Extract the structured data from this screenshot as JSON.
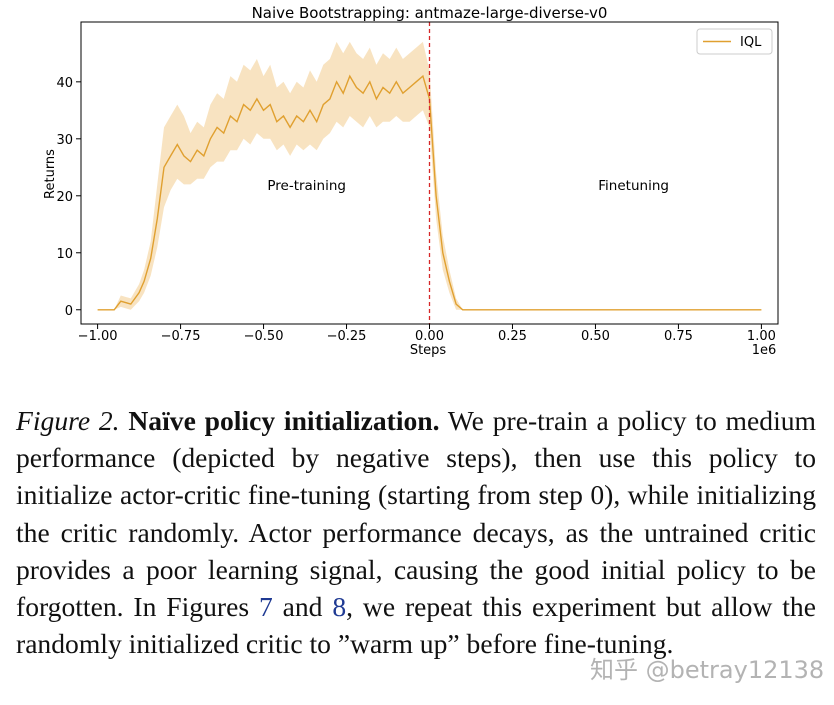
{
  "chart_data": {
    "type": "line",
    "title": "Naive Bootstrapping: antmaze-large-diverse-v0",
    "xlabel": "Steps",
    "ylabel": "Returns",
    "x_scale_label": "1e6",
    "xlim": [
      -1.05,
      1.05
    ],
    "ylim": [
      -2.5,
      50.5
    ],
    "xticks": [
      -1.0,
      -0.75,
      -0.5,
      -0.25,
      0.0,
      0.25,
      0.5,
      0.75,
      1.0
    ],
    "xtick_labels": [
      "−1.00",
      "−0.75",
      "−0.50",
      "−0.25",
      "0.00",
      "0.25",
      "0.50",
      "0.75",
      "1.00"
    ],
    "yticks": [
      0,
      10,
      20,
      30,
      40
    ],
    "ytick_labels": [
      "0",
      "10",
      "20",
      "30",
      "40"
    ],
    "vline": {
      "x": 0.0,
      "color": "#d62728",
      "style": "dashed"
    },
    "annotations": [
      {
        "text": "Pre-training",
        "x": -0.37,
        "y": 21
      },
      {
        "text": "Finetuning",
        "x": 0.615,
        "y": 21
      }
    ],
    "legend": {
      "position": "top-right",
      "entries": [
        "IQL"
      ]
    },
    "series": [
      {
        "name": "IQL",
        "color": "#e0a030",
        "band_color": "#f7deb6",
        "x": [
          -1.0,
          -0.95,
          -0.93,
          -0.9,
          -0.875,
          -0.86,
          -0.84,
          -0.82,
          -0.8,
          -0.78,
          -0.76,
          -0.74,
          -0.72,
          -0.7,
          -0.68,
          -0.66,
          -0.64,
          -0.62,
          -0.6,
          -0.58,
          -0.56,
          -0.54,
          -0.52,
          -0.5,
          -0.48,
          -0.46,
          -0.44,
          -0.42,
          -0.4,
          -0.38,
          -0.36,
          -0.34,
          -0.32,
          -0.3,
          -0.28,
          -0.26,
          -0.24,
          -0.22,
          -0.2,
          -0.18,
          -0.16,
          -0.14,
          -0.12,
          -0.1,
          -0.08,
          -0.06,
          -0.04,
          -0.02,
          0.0,
          0.02,
          0.04,
          0.06,
          0.08,
          0.1,
          0.2,
          0.4,
          0.6,
          0.8,
          1.0
        ],
        "mean": [
          0,
          0,
          1.5,
          1,
          3,
          5,
          9,
          16,
          25,
          27,
          29,
          27,
          26,
          28,
          27,
          30,
          32,
          31,
          34,
          33,
          36,
          35,
          37,
          35,
          36,
          33,
          34,
          32,
          34,
          33,
          35,
          33,
          36,
          37,
          40,
          38,
          41,
          39,
          38,
          40,
          37,
          39,
          38,
          40,
          38,
          39,
          40,
          41,
          37,
          20,
          10,
          5,
          1,
          0,
          0,
          0,
          0,
          0,
          0
        ],
        "lower": [
          0,
          0,
          0.5,
          0,
          1.5,
          3,
          6,
          11,
          18,
          21,
          23,
          22,
          22,
          23,
          23,
          25,
          26,
          26,
          28,
          28,
          30,
          29,
          31,
          30,
          30,
          28,
          29,
          27,
          29,
          28,
          29,
          28,
          30,
          31,
          33,
          32,
          34,
          33,
          32,
          34,
          32,
          33,
          33,
          34,
          33,
          33,
          34,
          35,
          32,
          16,
          7,
          3,
          0,
          0,
          0,
          0,
          0,
          0,
          0
        ],
        "upper": [
          0,
          0,
          2.5,
          2,
          4.5,
          7,
          12,
          22,
          32,
          34,
          36,
          34,
          31,
          33,
          32,
          36,
          38,
          37,
          41,
          40,
          43,
          42,
          44,
          41,
          43,
          39,
          40,
          38,
          40,
          39,
          42,
          40,
          43,
          44,
          47,
          45,
          47,
          45,
          44,
          46,
          43,
          45,
          44,
          46,
          44,
          45,
          46,
          47,
          42,
          24,
          13,
          7,
          2,
          0,
          0,
          0,
          0,
          0,
          0
        ]
      }
    ]
  },
  "caption": {
    "label": "Figure 2.",
    "title": "Naïve policy initialization.",
    "part1": "We pre-train a policy to medium performance (depicted by negative steps), then use this policy to initialize actor-critic fine-tuning (starting from step 0), while initializing the critic randomly. Actor performance decays, as the untrained critic provides a poor learning signal, causing the good initial policy to be forgotten. In Figures",
    "ref1": "7",
    "and_word": "and",
    "ref2": "8",
    "part2": ", we repeat this experiment but allow the randomly initialized critic to ”warm up” before fine-tuning."
  },
  "watermark": "知乎 @betray12138"
}
